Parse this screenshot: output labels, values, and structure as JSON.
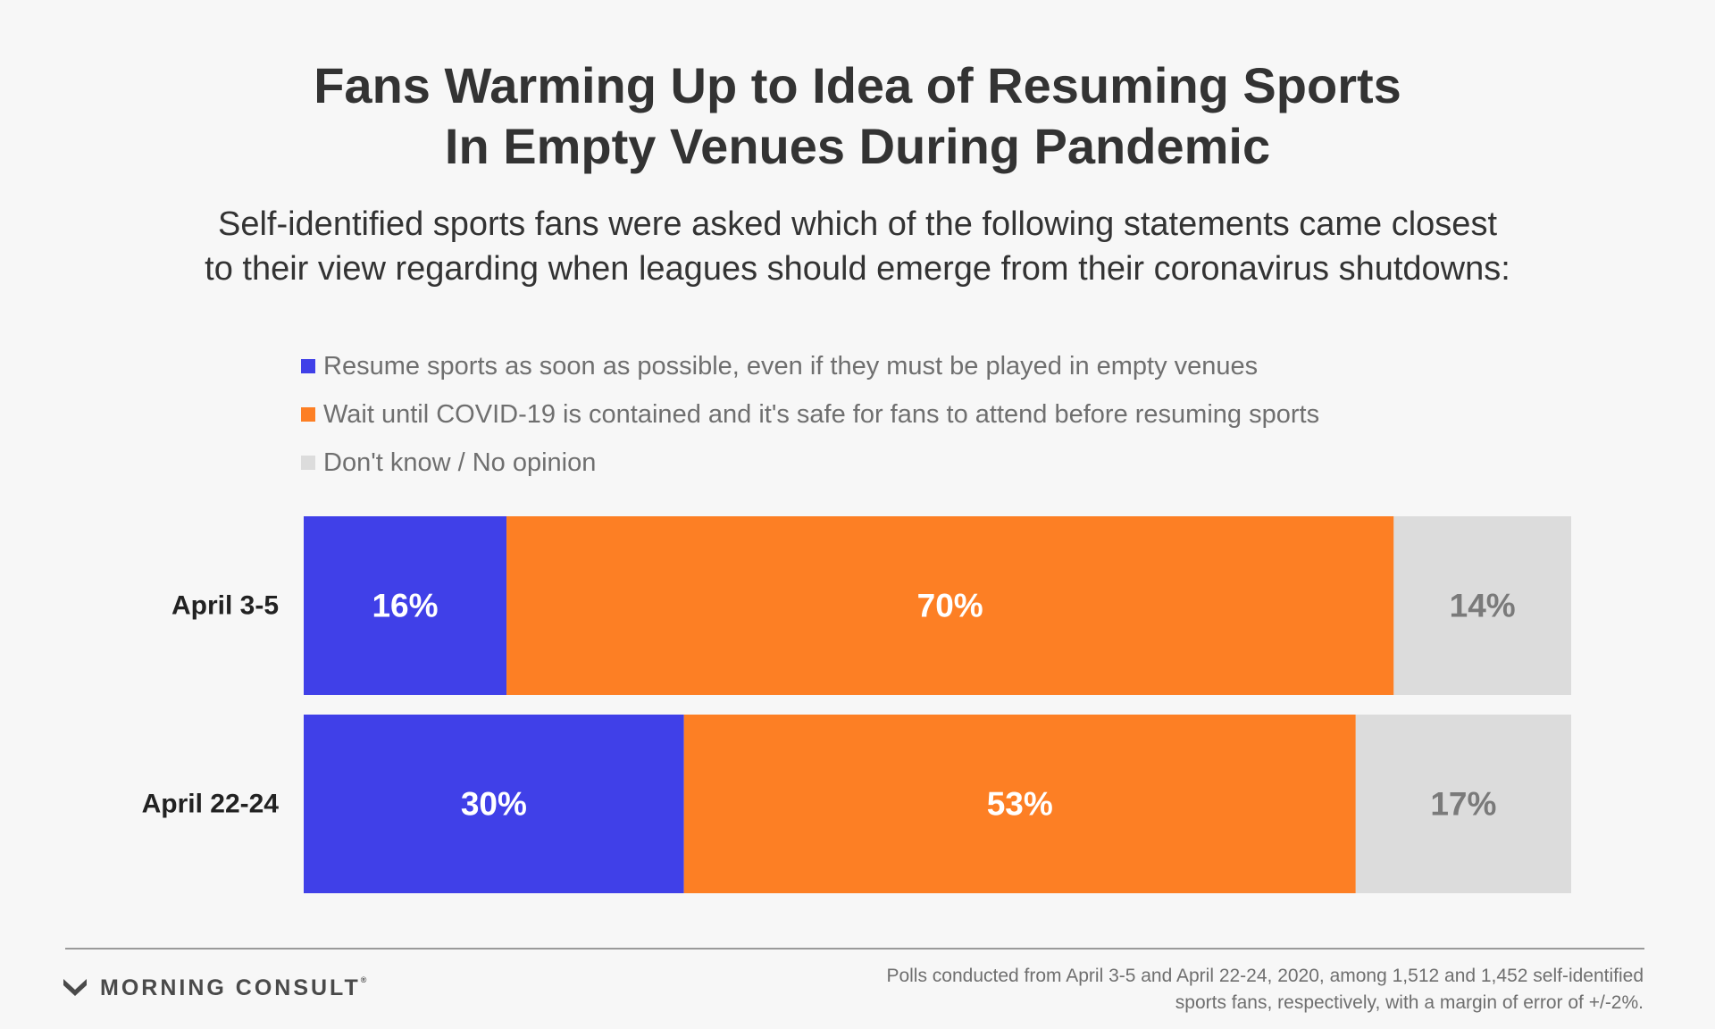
{
  "header": {
    "title_line1": "Fans Warming Up to Idea of Resuming Sports",
    "title_line2": "In Empty Venues During Pandemic",
    "subtitle_line1": "Self-identified sports fans were asked which of the following statements came closest",
    "subtitle_line2": "to their view regarding when leagues should emerge from their coronavirus shutdowns:"
  },
  "legend": [
    {
      "label": "Resume sports as soon as possible, even if they must be played in empty venues",
      "color": "#4040e8"
    },
    {
      "label": "Wait until COVID-19 is contained and it's safe for fans to attend before resuming sports",
      "color": "#fd7f24"
    },
    {
      "label": "Don't know / No opinion",
      "color": "#dcdcdc"
    }
  ],
  "chart_data": {
    "type": "bar",
    "orientation": "horizontal",
    "stacked": true,
    "categories": [
      "April 3-5",
      "April 22-24"
    ],
    "series": [
      {
        "name": "Resume sports as soon as possible, even if they must be played in empty venues",
        "values": [
          16,
          30
        ],
        "color": "#4040e8",
        "label_color": "#ffffff"
      },
      {
        "name": "Wait until COVID-19 is contained and it's safe for fans to attend before resuming sports",
        "values": [
          70,
          53
        ],
        "color": "#fd7f24",
        "label_color": "#ffffff"
      },
      {
        "name": "Don't know / No opinion",
        "values": [
          14,
          17
        ],
        "color": "#dcdcdc",
        "label_color": "#7a7a7a"
      }
    ],
    "value_suffix": "%",
    "xlim": [
      0,
      100
    ],
    "legend_position": "top",
    "grid": false
  },
  "footer": {
    "brand": "MORNING CONSULT",
    "brand_mark": "®",
    "note_line1": "Polls conducted from April 3-5 and April 22-24, 2020, among 1,512 and 1,452 self-identified",
    "note_line2": "sports fans, respectively, with a margin of error of +/-2%."
  }
}
